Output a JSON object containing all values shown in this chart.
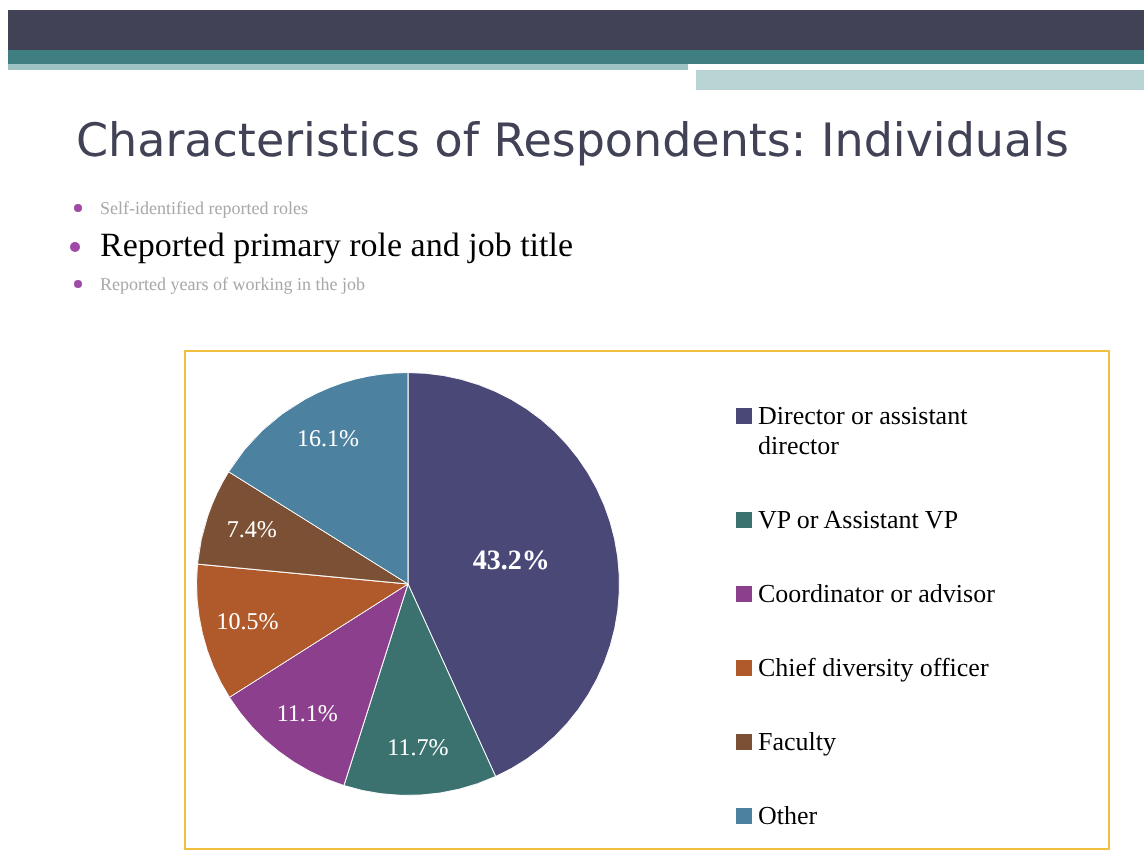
{
  "chart_data": {
    "type": "pie",
    "title": "Characteristics of Respondents: Individuals",
    "annotations": [
      "Self-identified reported roles",
      "Reported primary role and job title",
      "Reported years of working in the job"
    ],
    "categories": [
      "Director or assistant director",
      "VP or Assistant VP",
      "Coordinator or advisor",
      "Chief diversity officer",
      "Faculty",
      "Other"
    ],
    "values": [
      43.2,
      11.7,
      11.1,
      10.5,
      7.4,
      16.1
    ],
    "value_labels": [
      "43.2%",
      "11.7%",
      "11.1%",
      "10.5%",
      "7.4%",
      "16.1%"
    ],
    "colors": [
      "#4a4877",
      "#3b7270",
      "#8c3f8c",
      "#b0592a",
      "#7b5034",
      "#4d81a0"
    ],
    "legend": "right"
  }
}
